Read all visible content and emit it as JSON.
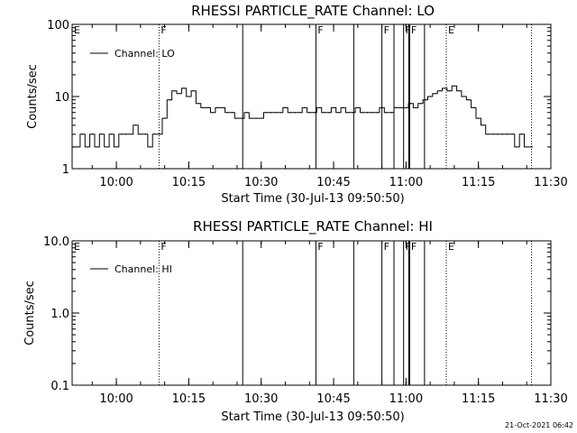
{
  "chart_data": [
    {
      "type": "line",
      "title": "RHESSI PARTICLE_RATE Channel: LO",
      "xlabel": "Start Time (30-Jul-13 09:50:50)",
      "ylabel": "Counts/sec",
      "y_scale": "log",
      "ylim": [
        1,
        100
      ],
      "y_ticks": [
        "1",
        "10",
        "100"
      ],
      "x_range": [
        "09:50:50",
        "11:30"
      ],
      "x_ticks": [
        "10:00",
        "10:15",
        "10:30",
        "10:45",
        "11:00",
        "11:15",
        "11:30"
      ],
      "legend": {
        "placement": "top-left",
        "entry": "Channel: LO"
      },
      "series": [
        {
          "name": "Channel: LO",
          "x": [
            "09:51",
            "09:52",
            "09:53",
            "09:54",
            "09:55",
            "09:56",
            "09:57",
            "09:58",
            "09:59",
            "10:00",
            "10:01",
            "10:02",
            "10:03",
            "10:04",
            "10:05",
            "10:06",
            "10:07",
            "10:08",
            "10:09",
            "10:10",
            "10:11",
            "10:12",
            "10:13",
            "10:14",
            "10:15",
            "10:16",
            "10:17",
            "10:18",
            "10:19",
            "10:20",
            "10:21",
            "10:22",
            "10:23",
            "10:24",
            "10:25",
            "10:26",
            "10:27",
            "10:28",
            "10:29",
            "10:30",
            "10:31",
            "10:32",
            "10:33",
            "10:34",
            "10:35",
            "10:36",
            "10:37",
            "10:38",
            "10:39",
            "10:40",
            "10:41",
            "10:42",
            "10:43",
            "10:44",
            "10:45",
            "10:46",
            "10:47",
            "10:48",
            "10:49",
            "10:50",
            "10:51",
            "10:52",
            "10:53",
            "10:54",
            "10:55",
            "10:56",
            "10:57",
            "10:58",
            "10:59",
            "11:00",
            "11:01",
            "11:02",
            "11:03",
            "11:04",
            "11:05",
            "11:06",
            "11:07",
            "11:08",
            "11:09",
            "11:10",
            "11:11",
            "11:12",
            "11:13",
            "11:14",
            "11:15",
            "11:16",
            "11:17",
            "11:18",
            "11:19",
            "11:20",
            "11:21",
            "11:22",
            "11:23",
            "11:24",
            "11:25",
            "11:26"
          ],
          "values": [
            2,
            2,
            3,
            2,
            3,
            2,
            3,
            2,
            3,
            2,
            3,
            3,
            3,
            4,
            3,
            3,
            2,
            3,
            3,
            5,
            9,
            12,
            11,
            13,
            10,
            12,
            8,
            7,
            7,
            6,
            7,
            7,
            6,
            6,
            5,
            5,
            6,
            5,
            5,
            5,
            6,
            6,
            6,
            6,
            7,
            6,
            6,
            6,
            7,
            6,
            6,
            7,
            6,
            6,
            7,
            6,
            7,
            6,
            6,
            7,
            6,
            6,
            6,
            6,
            7,
            6,
            6,
            7,
            7,
            7,
            8,
            7,
            8,
            9,
            10,
            11,
            12,
            13,
            12,
            14,
            12,
            10,
            9,
            7,
            5,
            4,
            3,
            3,
            3,
            3,
            3,
            3,
            2,
            3,
            2,
            2
          ]
        }
      ]
    },
    {
      "type": "line",
      "title": "RHESSI PARTICLE_RATE Channel: HI",
      "xlabel": "Start Time (30-Jul-13 09:50:50)",
      "ylabel": "Counts/sec",
      "y_scale": "log",
      "ylim": [
        0.1,
        10
      ],
      "y_ticks": [
        "0.1",
        "1.0",
        "10.0"
      ],
      "x_range": [
        "09:50:50",
        "11:30"
      ],
      "x_ticks": [
        "10:00",
        "10:15",
        "10:30",
        "10:45",
        "11:00",
        "11:15",
        "11:30"
      ],
      "legend": {
        "placement": "top-left",
        "entry": "Channel: HI"
      },
      "series": [
        {
          "name": "Channel: HI",
          "x": [],
          "values": []
        }
      ]
    }
  ],
  "markers": [
    {
      "time": "09:50:50",
      "label": "E",
      "style": "none"
    },
    {
      "time": "10:08:50",
      "label": "F",
      "style": "dotted"
    },
    {
      "time": "10:26:10",
      "label": "",
      "style": "solid"
    },
    {
      "time": "10:41:20",
      "label": "F",
      "style": "solid"
    },
    {
      "time": "10:49:10",
      "label": "",
      "style": "solid"
    },
    {
      "time": "10:55:00",
      "label": "F",
      "style": "solid"
    },
    {
      "time": "10:57:30",
      "label": "",
      "style": "solid"
    },
    {
      "time": "10:59:30",
      "label": "F",
      "style": "solid"
    },
    {
      "time": "11:00:40",
      "label": "F",
      "style": "solid-thick"
    },
    {
      "time": "11:03:50",
      "label": "",
      "style": "solid"
    },
    {
      "time": "11:08:20",
      "label": "E",
      "style": "dotted"
    },
    {
      "time": "11:26:00",
      "label": "",
      "style": "dotted"
    }
  ],
  "footer": {
    "timestamp": "21-Oct-2021 06:42"
  }
}
